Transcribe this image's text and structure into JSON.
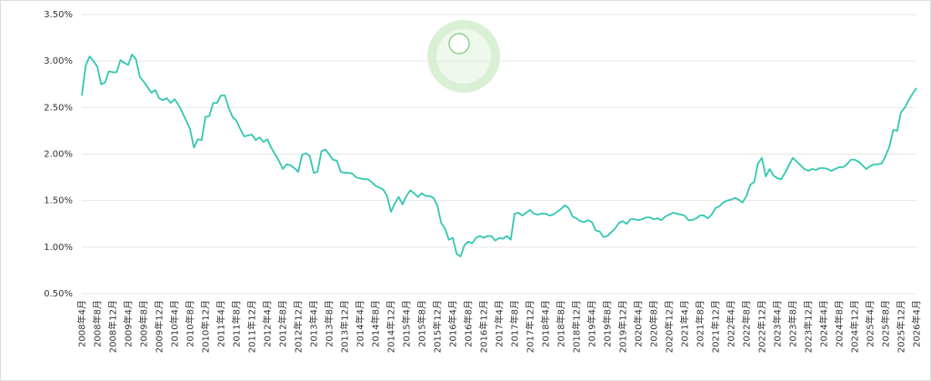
{
  "chart_data": {
    "type": "line",
    "color": "#33c7b1",
    "grid": true,
    "ylim": [
      0.5,
      3.5
    ],
    "yticks": [
      {
        "value": 0.5,
        "label": "0.50%"
      },
      {
        "value": 1.0,
        "label": "1.00%"
      },
      {
        "value": 1.5,
        "label": "1.50%"
      },
      {
        "value": 2.0,
        "label": "2.00%"
      },
      {
        "value": 2.5,
        "label": "2.50%"
      },
      {
        "value": 3.0,
        "label": "3.00%"
      },
      {
        "value": 3.5,
        "label": "3.50%"
      }
    ],
    "categories": [
      "2008年4月",
      null,
      null,
      null,
      "2008年8月",
      null,
      null,
      null,
      "2008年12月",
      null,
      null,
      null,
      "2009年4月",
      null,
      null,
      null,
      "2009年8月",
      null,
      null,
      null,
      "2009年12月",
      null,
      null,
      null,
      "2010年4月",
      null,
      null,
      null,
      "2010年8月",
      null,
      null,
      null,
      "2010年12月",
      null,
      null,
      null,
      "2011年4月",
      null,
      null,
      null,
      "2011年8月",
      null,
      null,
      null,
      "2011年12月",
      null,
      null,
      null,
      "2012年4月",
      null,
      null,
      null,
      "2012年8月",
      null,
      null,
      null,
      "2012年12月",
      null,
      null,
      null,
      "2013年4月",
      null,
      null,
      null,
      "2013年8月",
      null,
      null,
      null,
      "2013年12月",
      null,
      null,
      null,
      "2014年4月",
      null,
      null,
      null,
      "2014年8月",
      null,
      null,
      null,
      "2014年12月",
      null,
      null,
      null,
      "2015年4月",
      null,
      null,
      null,
      "2015年8月",
      null,
      null,
      null,
      "2015年12月",
      null,
      null,
      null,
      "2016年4月",
      null,
      null,
      null,
      "2016年8月",
      null,
      null,
      null,
      "2016年12月",
      null,
      null,
      null,
      "2017年4月",
      null,
      null,
      null,
      "2017年8月",
      null,
      null,
      null,
      "2017年12月",
      null,
      null,
      null,
      "2018年4月",
      null,
      null,
      null,
      "2018年8月",
      null,
      null,
      null,
      "2018年12月",
      null,
      null,
      null,
      "2019年4月",
      null,
      null,
      null,
      "2019年8月",
      null,
      null,
      null,
      "2019年12月",
      null,
      null,
      null,
      "2020年4月",
      null,
      null,
      null,
      "2020年8月",
      null,
      null,
      null,
      "2020年12月",
      null,
      null,
      null,
      "2021年4月",
      null,
      null,
      null,
      "2021年8月",
      null,
      null,
      null,
      "2021年12月",
      null,
      null,
      null,
      "2022年4月",
      null,
      null,
      null,
      "2022年8月",
      null,
      null,
      null,
      "2022年12月",
      null,
      null,
      null,
      "2023年4月",
      null,
      null,
      null,
      "2023年8月",
      null,
      null,
      null,
      "2023年12月",
      null,
      null,
      null,
      "2024年4月",
      null,
      null,
      null,
      "2024年8月",
      null,
      null,
      null,
      "2024年12月",
      null,
      null,
      null,
      "2025年4月",
      null,
      null,
      null,
      "2025年8月",
      null,
      null,
      null,
      "2025年12月",
      null,
      null,
      null,
      "2026年4月"
    ],
    "values": [
      2.63,
      2.95,
      3.05,
      3.0,
      2.94,
      2.75,
      2.77,
      2.89,
      2.88,
      2.88,
      3.01,
      2.98,
      2.96,
      3.07,
      3.02,
      2.83,
      2.78,
      2.72,
      2.66,
      2.69,
      2.6,
      2.58,
      2.6,
      2.55,
      2.59,
      2.53,
      2.45,
      2.36,
      2.27,
      2.07,
      2.16,
      2.15,
      2.4,
      2.41,
      2.55,
      2.55,
      2.63,
      2.63,
      2.5,
      2.4,
      2.36,
      2.27,
      2.19,
      2.2,
      2.21,
      2.15,
      2.18,
      2.13,
      2.16,
      2.07,
      2.0,
      1.93,
      1.84,
      1.89,
      1.88,
      1.85,
      1.81,
      1.99,
      2.01,
      1.98,
      1.8,
      1.81,
      2.03,
      2.05,
      2.0,
      1.94,
      1.93,
      1.81,
      1.8,
      1.8,
      1.79,
      1.75,
      1.74,
      1.73,
      1.73,
      1.7,
      1.66,
      1.64,
      1.62,
      1.55,
      1.38,
      1.47,
      1.54,
      1.46,
      1.55,
      1.61,
      1.58,
      1.54,
      1.58,
      1.55,
      1.55,
      1.53,
      1.45,
      1.26,
      1.2,
      1.08,
      1.1,
      0.93,
      0.9,
      1.02,
      1.06,
      1.04,
      1.1,
      1.12,
      1.1,
      1.12,
      1.12,
      1.07,
      1.1,
      1.09,
      1.12,
      1.08,
      1.36,
      1.37,
      1.34,
      1.37,
      1.4,
      1.36,
      1.35,
      1.36,
      1.36,
      1.34,
      1.35,
      1.38,
      1.41,
      1.45,
      1.42,
      1.33,
      1.31,
      1.28,
      1.27,
      1.29,
      1.27,
      1.18,
      1.17,
      1.11,
      1.12,
      1.16,
      1.2,
      1.26,
      1.28,
      1.25,
      1.3,
      1.3,
      1.29,
      1.3,
      1.32,
      1.32,
      1.3,
      1.31,
      1.29,
      1.33,
      1.35,
      1.37,
      1.36,
      1.35,
      1.34,
      1.29,
      1.29,
      1.31,
      1.34,
      1.34,
      1.31,
      1.35,
      1.42,
      1.44,
      1.48,
      1.5,
      1.51,
      1.53,
      1.51,
      1.48,
      1.55,
      1.67,
      1.7,
      1.9,
      1.96,
      1.76,
      1.84,
      1.77,
      1.74,
      1.73,
      1.8,
      1.88,
      1.96,
      1.92,
      1.88,
      1.84,
      1.82,
      1.84,
      1.83,
      1.85,
      1.85,
      1.84,
      1.82,
      1.84,
      1.86,
      1.86,
      1.89,
      1.94,
      1.94,
      1.92,
      1.88,
      1.84,
      1.87,
      1.89,
      1.89,
      1.9,
      1.98,
      2.08,
      2.26,
      2.25,
      2.45,
      2.5,
      2.58,
      2.65,
      2.71
    ]
  }
}
